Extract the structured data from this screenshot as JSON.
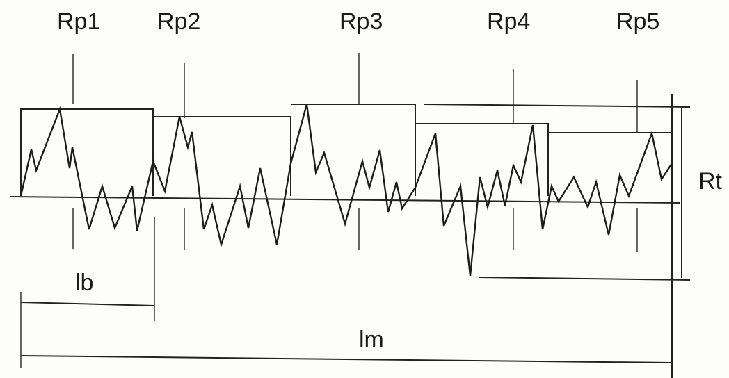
{
  "labels": {
    "rp1": "Rp1",
    "rp2": "Rp2",
    "rp3": "Rp3",
    "rp4": "Rp4",
    "rp5": "Rp5",
    "rt": "Rt",
    "lb": "lb",
    "lm": "lm"
  },
  "colors": {
    "ink": "#1c1c1c",
    "paper": "#fdfdfb"
  }
}
